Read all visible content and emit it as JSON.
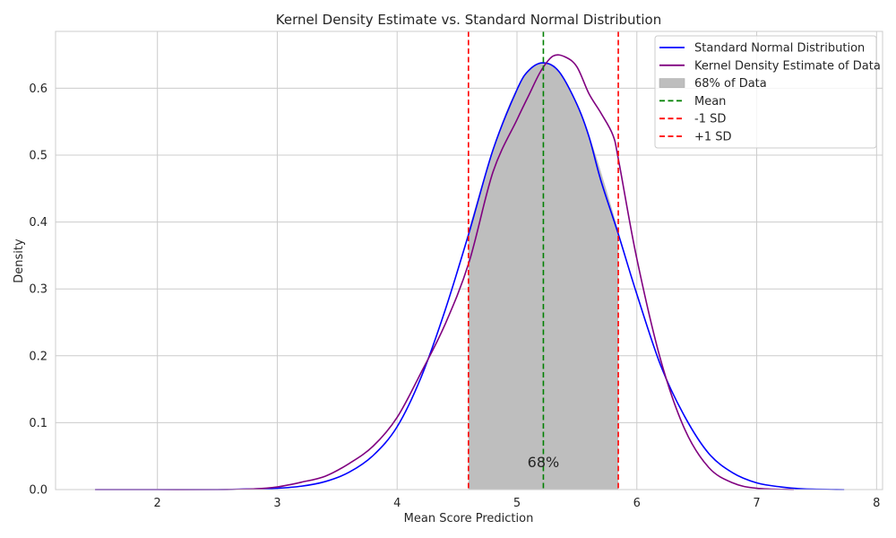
{
  "chart_data": {
    "type": "line",
    "title": "Kernel Density Estimate vs. Standard Normal Distribution",
    "xlabel": "Mean Score Prediction",
    "ylabel": "Density",
    "xlim": [
      1.15,
      8.05
    ],
    "ylim": [
      0,
      0.685
    ],
    "xticks": [
      2,
      3,
      4,
      5,
      6,
      7,
      8
    ],
    "yticks": [
      0.0,
      0.1,
      0.2,
      0.3,
      0.4,
      0.5,
      0.6
    ],
    "ytick_labels": [
      "0.0",
      "0.1",
      "0.2",
      "0.3",
      "0.4",
      "0.5",
      "0.6"
    ],
    "grid": true,
    "legend_position": "upper right",
    "mean": 5.22,
    "sd": 0.625,
    "series": [
      {
        "name": "Standard Normal Distribution",
        "color": "#0000ff",
        "x": [
          1.48,
          2.0,
          2.5,
          2.8,
          3.0,
          3.2,
          3.4,
          3.6,
          3.8,
          4.0,
          4.2,
          4.4,
          4.6,
          4.8,
          5.0,
          5.1,
          5.22,
          5.35,
          5.5,
          5.6,
          5.7,
          5.84,
          6.0,
          6.2,
          6.4,
          6.6,
          6.8,
          7.0,
          7.2,
          7.4,
          7.73
        ],
        "y": [
          0.0,
          0.0,
          0.0,
          0.001,
          0.002,
          0.005,
          0.012,
          0.026,
          0.051,
          0.094,
          0.168,
          0.268,
          0.384,
          0.508,
          0.598,
          0.627,
          0.638,
          0.625,
          0.576,
          0.528,
          0.462,
          0.385,
          0.292,
          0.185,
          0.109,
          0.054,
          0.025,
          0.01,
          0.004,
          0.001,
          0.0
        ]
      },
      {
        "name": "Kernel Density Estimate of Data",
        "color": "#800080",
        "x": [
          1.48,
          2.0,
          2.5,
          2.8,
          3.0,
          3.2,
          3.4,
          3.6,
          3.8,
          4.0,
          4.2,
          4.4,
          4.6,
          4.8,
          5.0,
          5.1,
          5.2,
          5.3,
          5.4,
          5.5,
          5.6,
          5.7,
          5.8,
          5.85,
          6.0,
          6.2,
          6.4,
          6.6,
          6.8,
          7.0,
          7.31
        ],
        "y": [
          0.0,
          0.0,
          0.0,
          0.001,
          0.004,
          0.011,
          0.02,
          0.039,
          0.065,
          0.108,
          0.175,
          0.247,
          0.34,
          0.475,
          0.553,
          0.59,
          0.626,
          0.648,
          0.647,
          0.632,
          0.592,
          0.563,
          0.53,
          0.49,
          0.345,
          0.193,
          0.09,
          0.033,
          0.01,
          0.002,
          0.0
        ]
      }
    ],
    "shaded_region": {
      "label": "68% of Data",
      "from": 4.595,
      "to": 5.845,
      "color": "#bebebe"
    },
    "vlines": [
      {
        "label": "Mean",
        "x": 5.22,
        "color": "#008000"
      },
      {
        "label": "-1 SD",
        "x": 4.595,
        "color": "#ff0000"
      },
      {
        "label": "+1 SD",
        "x": 5.845,
        "color": "#ff0000"
      }
    ],
    "annotation": {
      "text": "68%",
      "x": 5.22,
      "y": 0.04
    }
  }
}
